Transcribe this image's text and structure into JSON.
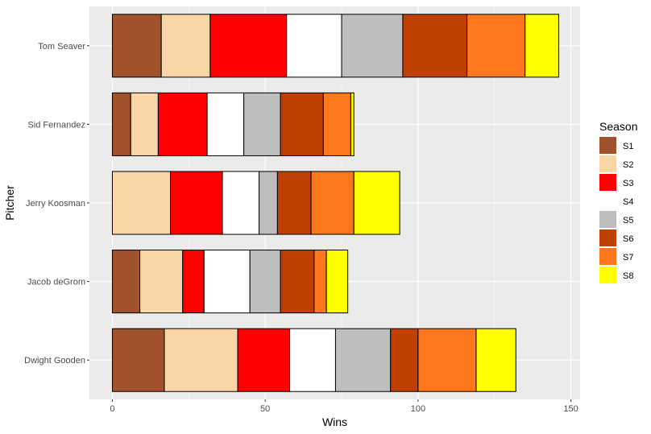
{
  "chart_data": {
    "type": "bar",
    "orientation": "horizontal",
    "stacked": true,
    "xlabel": "Wins",
    "ylabel": "Pitcher",
    "xlim": [
      -7.5,
      153
    ],
    "x_ticks": [
      0,
      50,
      100,
      150
    ],
    "grid": true,
    "legend_title": "Season",
    "legend_position": "right",
    "categories": [
      "Dwight Gooden",
      "Jacob deGrom",
      "Jerry Koosman",
      "Sid Fernandez",
      "Tom Seaver"
    ],
    "series": [
      {
        "name": "S1",
        "color": "#A0522D",
        "values": [
          17,
          9,
          0,
          6,
          16
        ]
      },
      {
        "name": "S2",
        "color": "#FAD5A5",
        "values": [
          24,
          14,
          19,
          9,
          16
        ]
      },
      {
        "name": "S3",
        "color": "#FF0000",
        "values": [
          17,
          7,
          17,
          16,
          25
        ]
      },
      {
        "name": "S4",
        "color": "#FFFFFF",
        "values": [
          15,
          15,
          12,
          12,
          18
        ]
      },
      {
        "name": "S5",
        "color": "#BEBEBE",
        "values": [
          18,
          10,
          6,
          12,
          20
        ]
      },
      {
        "name": "S6",
        "color": "#BF4000",
        "values": [
          9,
          11,
          11,
          14,
          21
        ]
      },
      {
        "name": "S7",
        "color": "#FF771C",
        "values": [
          19,
          4,
          14,
          9,
          19
        ]
      },
      {
        "name": "S8",
        "color": "#FFFF00",
        "values": [
          13,
          7,
          15,
          1,
          11
        ]
      }
    ]
  }
}
